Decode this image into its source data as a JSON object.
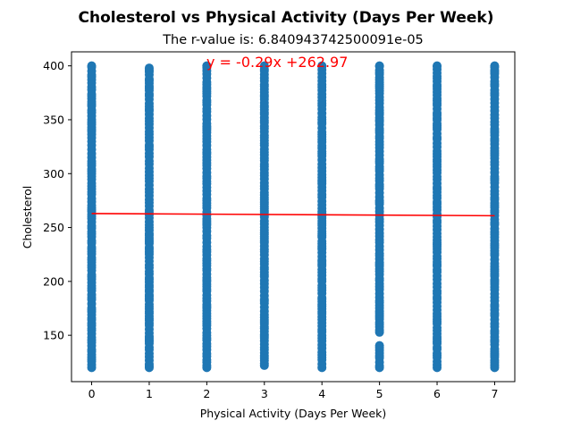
{
  "chart_data": {
    "type": "scatter",
    "title": "Cholesterol vs Physical Activity (Days Per Week)",
    "subtitle": "The r-value is: 6.840943742500091e-05",
    "xlabel": "Physical Activity (Days Per Week)",
    "ylabel": "Cholesterol",
    "xlim": [
      -0.35,
      7.35
    ],
    "ylim": [
      107,
      413
    ],
    "xticks": [
      0,
      1,
      2,
      3,
      4,
      5,
      6,
      7
    ],
    "yticks": [
      150,
      200,
      250,
      300,
      350,
      400
    ],
    "point_color": "#1f77b4",
    "line_color": "#ff0000",
    "regression": {
      "equation": "y = -0.29x +262.97",
      "slope": -0.29,
      "intercept": 262.97,
      "x_range": [
        0,
        7
      ]
    },
    "series": [
      {
        "x": 0,
        "y_range": [
          120,
          400
        ]
      },
      {
        "x": 1,
        "y_range": [
          120,
          398
        ]
      },
      {
        "x": 2,
        "y_range": [
          120,
          400
        ]
      },
      {
        "x": 3,
        "y_range": [
          122,
          400
        ]
      },
      {
        "x": 4,
        "y_range": [
          120,
          400
        ]
      },
      {
        "x": 5,
        "y_range": [
          120,
          400
        ],
        "gap": [
          142,
          152
        ]
      },
      {
        "x": 6,
        "y_range": [
          120,
          400
        ]
      },
      {
        "x": 7,
        "y_range": [
          120,
          400
        ]
      }
    ]
  }
}
